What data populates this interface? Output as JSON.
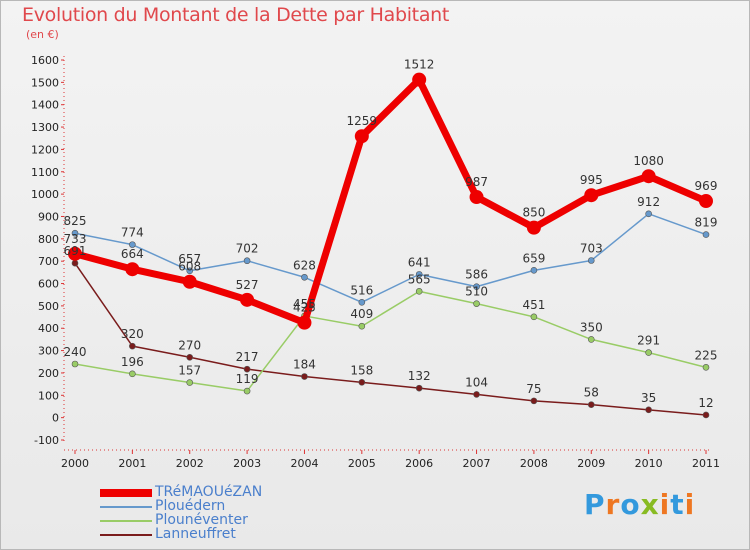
{
  "title": "Evolution du Montant de la Dette par Habitant",
  "unit": "(en €)",
  "logo": "Proxiti",
  "chart_data": {
    "type": "line",
    "x": [
      "2000",
      "2001",
      "2002",
      "2003",
      "2004",
      "2005",
      "2006",
      "2007",
      "2008",
      "2009",
      "2010",
      "2011"
    ],
    "ylim": [
      -100,
      1600
    ],
    "yticks": [
      -100,
      0,
      100,
      200,
      300,
      400,
      500,
      600,
      700,
      800,
      900,
      1000,
      1100,
      1200,
      1300,
      1400,
      1500,
      1600
    ],
    "grid": false,
    "legend_position": "bottom-left",
    "series": [
      {
        "name": "Lanneuffret",
        "color": "#7a1c1c",
        "width": 1.5,
        "r": 3,
        "values": [
          691,
          320,
          270,
          217,
          184,
          158,
          132,
          104,
          75,
          58,
          35,
          12
        ]
      },
      {
        "name": "Plounéventer",
        "color": "#99cc66",
        "width": 1.5,
        "r": 3,
        "values": [
          240,
          196,
          157,
          119,
          455,
          409,
          565,
          510,
          451,
          350,
          291,
          225
        ]
      },
      {
        "name": "Plouédern",
        "color": "#6699cc",
        "width": 1.5,
        "r": 3,
        "values": [
          825,
          774,
          657,
          702,
          628,
          516,
          641,
          586,
          659,
          703,
          912,
          819
        ]
      },
      {
        "name": "TRéMAOUéZAN",
        "color": "#ee0000",
        "width": 7,
        "r": 7,
        "values": [
          733,
          664,
          608,
          527,
          425,
          1259,
          1512,
          987,
          850,
          995,
          1080,
          969
        ]
      }
    ]
  }
}
